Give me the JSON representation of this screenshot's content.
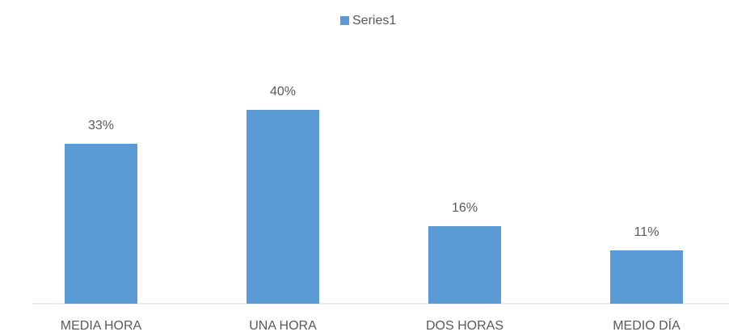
{
  "chart_data": {
    "type": "bar",
    "categories": [
      "MEDIA HORA",
      "UNA HORA",
      "DOS HORAS",
      "MEDIO DÍA"
    ],
    "series": [
      {
        "name": "Series1",
        "color": "#5b9bd5",
        "values": [
          33,
          40,
          16,
          11
        ],
        "value_labels": [
          "33%",
          "40%",
          "16%",
          "11%"
        ]
      }
    ],
    "ylim": [
      0,
      45
    ],
    "legend": "top"
  }
}
